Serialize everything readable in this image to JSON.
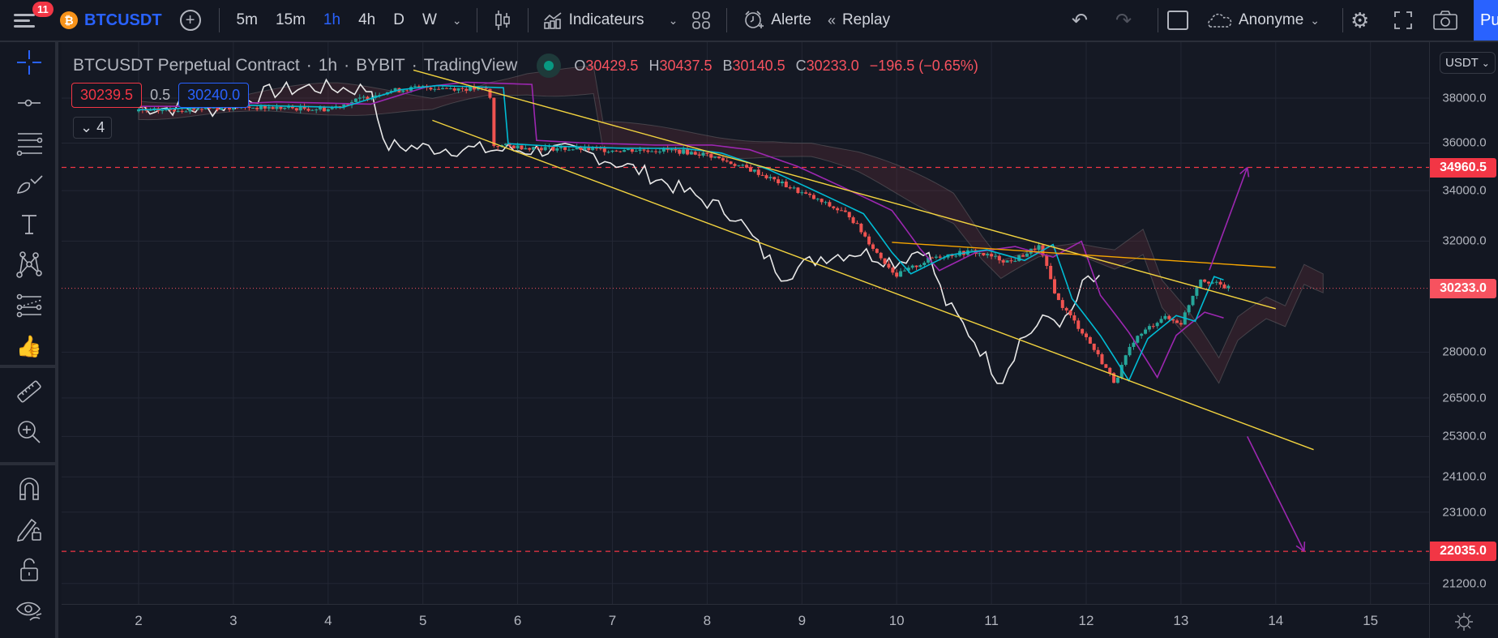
{
  "topbar": {
    "notification_count": "11",
    "symbol": "BTCUSDT",
    "intervals": [
      {
        "label": "5m",
        "active": false
      },
      {
        "label": "15m",
        "active": false
      },
      {
        "label": "1h",
        "active": true
      },
      {
        "label": "4h",
        "active": false
      },
      {
        "label": "D",
        "active": false
      },
      {
        "label": "W",
        "active": false
      }
    ],
    "indicators_label": "Indicateurs",
    "alert_label": "Alerte",
    "replay_label": "Replay",
    "layout_name": "Anonyme",
    "publish_label": "Pu"
  },
  "left_toolbar": {
    "tools": [
      "crosshair",
      "horizontal-line",
      "pitchfork",
      "brush",
      "text",
      "pattern",
      "forecast",
      "icons-thumbs-up",
      "ruler",
      "zoom-in",
      "magnet",
      "stay-in-drawing-mode",
      "lock",
      "hide"
    ]
  },
  "legend": {
    "title": "BTCUSDT Perpetual Contract",
    "interval": "1h",
    "exchange": "BYBIT",
    "source": "TradingView",
    "open_key": "O",
    "open": "30429.5",
    "high_key": "H",
    "high": "30437.5",
    "low_key": "B",
    "low": "30140.5",
    "close_key": "C",
    "close": "30233.0",
    "change": "−196.5 (−0.65%)",
    "bid": "30239.5",
    "spread": "0.5",
    "ask": "30240.0",
    "collapsed_count": "4"
  },
  "price_axis": {
    "currency": "USDT",
    "labels": [
      "38000.0",
      "36000.0",
      "34000.0",
      "32000.0",
      "28000.0",
      "26500.0",
      "25300.0",
      "24100.0",
      "23100.0",
      "21200.0"
    ],
    "tags": [
      {
        "value": "34960.5",
        "color": "#f23645"
      },
      {
        "value": "30233.0",
        "color": "#f7525f"
      },
      {
        "value": "22035.0",
        "color": "#f23645"
      }
    ]
  },
  "time_axis": {
    "labels": [
      "2",
      "3",
      "4",
      "5",
      "6",
      "7",
      "8",
      "9",
      "10",
      "11",
      "12",
      "13",
      "14",
      "15"
    ]
  },
  "chart_data": {
    "type": "candlestick",
    "title": "BTCUSDT Perpetual Contract · 1h · BYBIT",
    "x_axis": {
      "label": "day of month",
      "ticks": [
        2,
        3,
        4,
        5,
        6,
        7,
        8,
        9,
        10,
        11,
        12,
        13,
        14,
        15
      ]
    },
    "y_axis": {
      "label": "USDT",
      "scale": "log",
      "range": [
        20800,
        39500
      ],
      "ticks": [
        38000,
        36000,
        34000,
        32000,
        28000,
        26500,
        25300,
        24100,
        23100,
        21200
      ]
    },
    "last_price": 30233.0,
    "ohlc_last": {
      "open": 30429.5,
      "high": 30437.5,
      "low": 30140.5,
      "close": 30233.0,
      "change": -196.5,
      "change_pct": -0.65
    },
    "horizontal_levels": [
      34960.5,
      22035.0
    ],
    "approx_close_path": [
      {
        "day": 2.0,
        "price": 37400
      },
      {
        "day": 3.0,
        "price": 37600
      },
      {
        "day": 4.0,
        "price": 37500
      },
      {
        "day": 4.6,
        "price": 38300
      },
      {
        "day": 5.0,
        "price": 38500
      },
      {
        "day": 5.7,
        "price": 38400
      },
      {
        "day": 5.75,
        "price": 35900
      },
      {
        "day": 6.2,
        "price": 35800
      },
      {
        "day": 7.0,
        "price": 35700
      },
      {
        "day": 7.6,
        "price": 35700
      },
      {
        "day": 8.0,
        "price": 35500
      },
      {
        "day": 8.5,
        "price": 34800
      },
      {
        "day": 9.0,
        "price": 33900
      },
      {
        "day": 9.5,
        "price": 33000
      },
      {
        "day": 9.8,
        "price": 31500
      },
      {
        "day": 10.0,
        "price": 30700
      },
      {
        "day": 10.4,
        "price": 31400
      },
      {
        "day": 10.8,
        "price": 31600
      },
      {
        "day": 11.2,
        "price": 31200
      },
      {
        "day": 11.5,
        "price": 31800
      },
      {
        "day": 11.7,
        "price": 29800
      },
      {
        "day": 12.0,
        "price": 28500
      },
      {
        "day": 12.3,
        "price": 27000
      },
      {
        "day": 12.5,
        "price": 28400
      },
      {
        "day": 12.8,
        "price": 29200
      },
      {
        "day": 13.0,
        "price": 29000
      },
      {
        "day": 13.2,
        "price": 30600
      },
      {
        "day": 13.5,
        "price": 30233
      }
    ],
    "drawings": [
      {
        "type": "trendline",
        "color": "#f2d33f",
        "name": "channel upper",
        "from": {
          "day": 4.9,
          "price": 39300
        },
        "to": {
          "day": 14.0,
          "price": 29500
        }
      },
      {
        "type": "trendline",
        "color": "#f2d33f",
        "name": "channel lower",
        "from": {
          "day": 5.1,
          "price": 37000
        },
        "to": {
          "day": 14.4,
          "price": 24900
        }
      },
      {
        "type": "trendline",
        "color": "#f7a600",
        "name": "resistance",
        "from": {
          "day": 9.95,
          "price": 31950
        },
        "to": {
          "day": 14.0,
          "price": 31000
        }
      },
      {
        "type": "arrow",
        "color": "#9c27b0",
        "name": "bullish target",
        "from": {
          "day": 13.3,
          "price": 30900
        },
        "to": {
          "day": 13.7,
          "price": 34960
        }
      },
      {
        "type": "arrow",
        "color": "#9c27b0",
        "name": "bearish target",
        "from": {
          "day": 13.7,
          "price": 25300
        },
        "to": {
          "day": 14.3,
          "price": 22035
        }
      }
    ],
    "indicators": [
      "Ichimoku Cloud (tenkan cyan, kijun purple, chikou white, kumo cloud)"
    ],
    "grid": true,
    "legend_position": "top-left"
  }
}
